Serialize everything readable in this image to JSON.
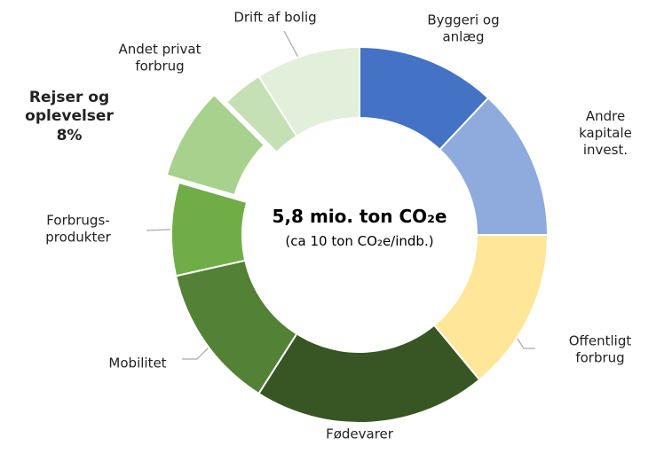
{
  "chart_data": {
    "type": "donut",
    "center_title": "5,8 mio. ton CO₂e",
    "center_subtitle": "(ca 10 ton CO₂e/indb.)",
    "categories": [
      "Byggeri og\nanlæg",
      "Andre kapitale\ninvest.",
      "Offentligt\nforbrug",
      "Fødevarer",
      "Mobilitet",
      "Forbrugs-\nprodukter",
      "Rejser og\noplevelser",
      "Andet privat\nforbrug",
      "Drift af bolig"
    ],
    "values": [
      12,
      13,
      14,
      20,
      12.5,
      8,
      8,
      3.5,
      9
    ],
    "value_labels": [
      null,
      null,
      null,
      null,
      null,
      null,
      "8%",
      null,
      null
    ],
    "colors": [
      "#4472c4",
      "#8faadc",
      "#ffe699",
      "#375623",
      "#538135",
      "#70ad47",
      "#a9d18e",
      "#c5e0b4",
      "#e2efda"
    ],
    "exploded": 6
  }
}
